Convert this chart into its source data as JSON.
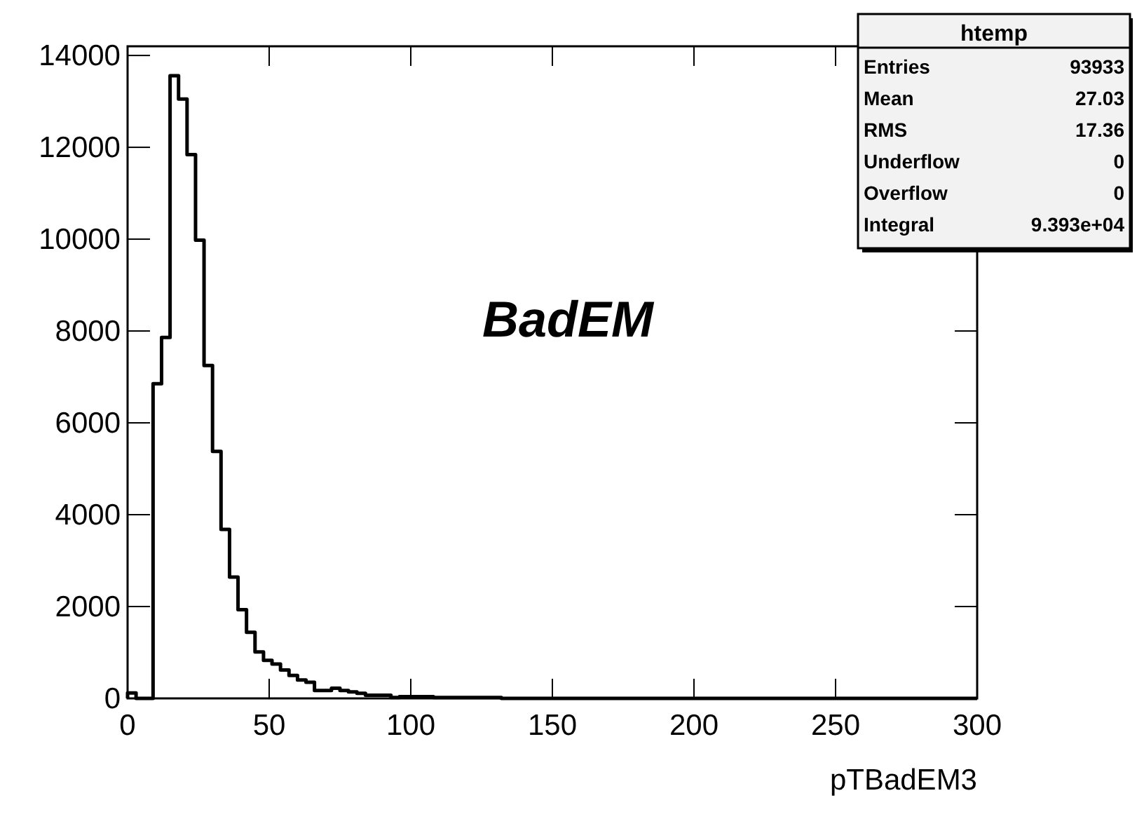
{
  "chart_data": {
    "type": "histogram",
    "title": "BadEM",
    "xlabel": "pTBadEM3",
    "color": "#000000",
    "bins": [
      0,
      3,
      6,
      9,
      12,
      15,
      18,
      21,
      24,
      27,
      30,
      33,
      36,
      39,
      42,
      45,
      48,
      51,
      54,
      57,
      60,
      63,
      66,
      69,
      72,
      75,
      78,
      81,
      84,
      87,
      90,
      93,
      96,
      99,
      102,
      105,
      108,
      111,
      114,
      117,
      120,
      123,
      126,
      129,
      132,
      135,
      138,
      141,
      144,
      147,
      150,
      153,
      156,
      159,
      162,
      165,
      168,
      171,
      174,
      177,
      180,
      183,
      186,
      189,
      192,
      195,
      198,
      201,
      204,
      207,
      210,
      213,
      216,
      219,
      222,
      225,
      228,
      231,
      234,
      237,
      240,
      243,
      246,
      249,
      252,
      255,
      258,
      261,
      264,
      267,
      270,
      273,
      276,
      279,
      282,
      285,
      288,
      291,
      294,
      297,
      300
    ],
    "values": [
      120,
      0,
      0,
      6850,
      7860,
      13560,
      13050,
      11840,
      9980,
      7250,
      5380,
      3680,
      2640,
      1930,
      1440,
      1010,
      830,
      750,
      620,
      500,
      400,
      350,
      170,
      170,
      220,
      170,
      140,
      110,
      70,
      70,
      70,
      20,
      40,
      40,
      40,
      40,
      20,
      20,
      20,
      20,
      20,
      20,
      20,
      20,
      0,
      0,
      0,
      0,
      0,
      0,
      0,
      0,
      0,
      0,
      0,
      0,
      0,
      0,
      0,
      0,
      0,
      0,
      0,
      0,
      0,
      0,
      0,
      0,
      0,
      0,
      0,
      0,
      0,
      0,
      0,
      0,
      0,
      0,
      0,
      0,
      0,
      0,
      0,
      0,
      0,
      0,
      0,
      0,
      0,
      0,
      0,
      0,
      0,
      0,
      0,
      0,
      0,
      0,
      0,
      0
    ],
    "xlim": [
      0,
      300
    ],
    "xticks": [
      0,
      50,
      100,
      150,
      200,
      250,
      300
    ],
    "ylim": [
      0,
      14200
    ],
    "yticks": [
      0,
      2000,
      4000,
      6000,
      8000,
      10000,
      12000,
      14000
    ],
    "grid": false,
    "annotations": [
      "htemp",
      "Entries",
      "93933",
      "Mean",
      "27.03",
      "RMS",
      "17.36",
      "Underflow",
      "0",
      "Overflow",
      "0",
      "Integral",
      "9.393e+04"
    ]
  }
}
